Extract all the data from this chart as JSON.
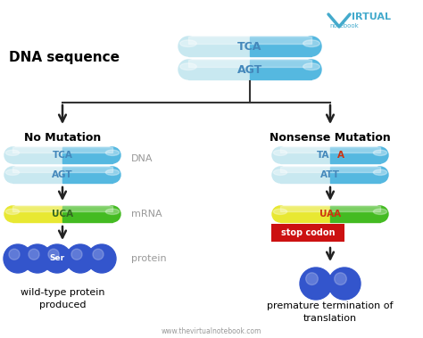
{
  "bg_color": "#ffffff",
  "title_text": "DNA sequence",
  "website": "www.thevirtualnotebook.com",
  "top_strand1": "TCA",
  "top_strand2": "AGT",
  "left_title": "No Mutation",
  "left_dna1": "TCA",
  "left_dna2": "AGT",
  "left_mrna": "UCA",
  "left_protein_label": "Ser",
  "left_caption": "wild-type protein\nproduced",
  "right_title": "Nonsense Mutation",
  "right_dna1_part1": "TA",
  "right_dna1_part2": "A",
  "right_dna2": "ATT",
  "right_mrna_part1": "UAA",
  "right_stop": "stop codon",
  "right_caption": "premature termination of\ntranslation",
  "dna_label": "DNA",
  "mrna_label": "mRNA",
  "protein_label": "protein",
  "color_pill_left": "#c8e8f0",
  "color_pill_right": "#55b8e0",
  "color_yellow": "#e8e832",
  "color_green": "#44bb22",
  "color_blue_protein": "#3355cc",
  "color_red_bg": "#cc1111",
  "color_grey_label": "#999999",
  "color_title": "#000000",
  "color_dna_text": "#4488bb",
  "color_mutant_text": "#cc3311",
  "color_line": "#333333",
  "color_logo": "#44aacc"
}
